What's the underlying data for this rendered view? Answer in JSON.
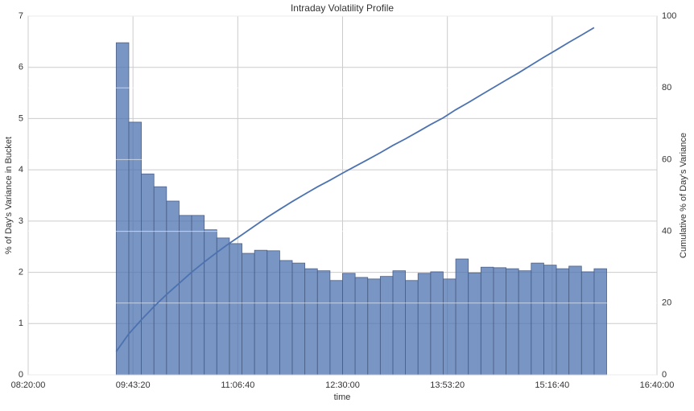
{
  "chart_data": {
    "type": "histogram",
    "title": "Intraday Volatility Profile",
    "xlabel": "time",
    "ylabel": "% of Day's Variance in Bucket",
    "y2label": "Cumulative % of Day's Variance",
    "color": "#4c72b0",
    "grid": true,
    "bins": [
      34200,
      34800,
      35400,
      36000,
      36600,
      37200,
      37800,
      38400,
      39000,
      39600,
      40200,
      40800,
      41400,
      42000,
      42600,
      43200,
      43800,
      44400,
      45000,
      45600,
      46200,
      46800,
      47400,
      48000,
      48600,
      49200,
      49800,
      50400,
      51000,
      51600,
      52200,
      52800,
      53400,
      54000,
      54600,
      55200,
      55800,
      56400,
      57000,
      57600
    ],
    "values": [
      6.48,
      4.93,
      3.92,
      3.67,
      3.39,
      3.11,
      3.11,
      2.83,
      2.67,
      2.56,
      2.37,
      2.43,
      2.42,
      2.23,
      2.18,
      2.07,
      2.03,
      1.84,
      1.98,
      1.9,
      1.87,
      1.92,
      2.03,
      1.84,
      1.98,
      2.01,
      1.87,
      2.26,
      1.99,
      2.1,
      2.09,
      2.07,
      2.03,
      2.18,
      2.14,
      2.07,
      2.12,
      2.01,
      2.07
    ],
    "line": {
      "color": "#4c72b0",
      "axis": "y2",
      "x": [
        34200,
        34800,
        35400,
        36000,
        36600,
        37200,
        37800,
        38400,
        39000,
        39600,
        40200,
        40800,
        41400,
        42000,
        42600,
        43200,
        43800,
        44400,
        45000,
        45600,
        46200,
        46800,
        47400,
        48000,
        48600,
        49200,
        49800,
        50400,
        51000,
        51600,
        52200,
        52800,
        53400,
        54000,
        54600,
        55200,
        55800,
        56400,
        57000
      ],
      "values": [
        6.48,
        11.41,
        15.33,
        19.0,
        22.39,
        25.5,
        28.61,
        31.44,
        34.11,
        36.67,
        39.04,
        41.47,
        43.89,
        46.12,
        48.3,
        50.37,
        52.4,
        54.24,
        56.22,
        58.12,
        59.99,
        61.91,
        63.94,
        65.78,
        67.76,
        69.77,
        71.64,
        73.9,
        75.89,
        77.99,
        80.08,
        82.15,
        84.18,
        86.36,
        88.5,
        90.57,
        92.69,
        94.7,
        96.77
      ]
    },
    "xlim": [
      30000,
      60000
    ],
    "xticks": [
      {
        "value": 30000,
        "label": "08:20:00"
      },
      {
        "value": 35000,
        "label": "09:43:20"
      },
      {
        "value": 40000,
        "label": "11:06:40"
      },
      {
        "value": 45000,
        "label": "12:30:00"
      },
      {
        "value": 50000,
        "label": "13:53:20"
      },
      {
        "value": 55000,
        "label": "15:16:40"
      },
      {
        "value": 60000,
        "label": "16:40:00"
      }
    ],
    "ylim": [
      0,
      7
    ],
    "yticks": [
      0,
      1,
      2,
      3,
      4,
      5,
      6,
      7
    ],
    "y2lim": [
      0,
      100
    ],
    "y2ticks": [
      0,
      20,
      40,
      60,
      80,
      100
    ]
  }
}
